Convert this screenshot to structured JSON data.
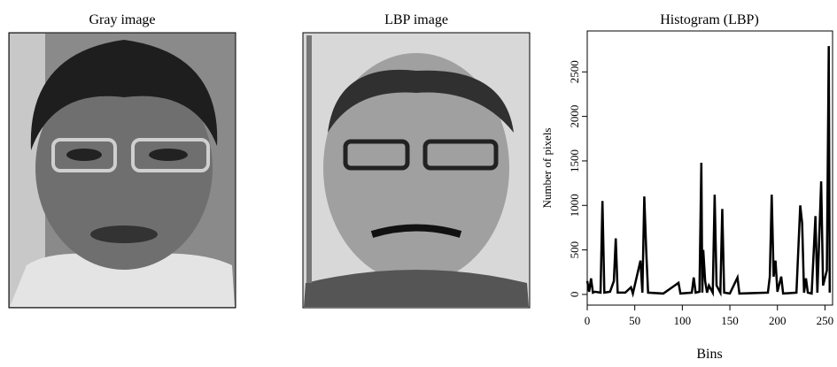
{
  "images": [
    {
      "title": "Gray image"
    },
    {
      "title": "LBP image"
    }
  ],
  "chart_data": {
    "type": "line",
    "title": "Histogram (LBP)",
    "x_label": "Bins",
    "y_label": "Number of pixels",
    "color": "#000000",
    "x": [
      0,
      2,
      4,
      6,
      8,
      14,
      16,
      18,
      24,
      28,
      30,
      32,
      40,
      46,
      48,
      56,
      58,
      60,
      62,
      64,
      80,
      96,
      98,
      110,
      112,
      114,
      118,
      120,
      121,
      122,
      124,
      126,
      128,
      132,
      134,
      136,
      140,
      142,
      144,
      150,
      158,
      160,
      190,
      192,
      194,
      196,
      198,
      200,
      204,
      206,
      220,
      224,
      226,
      228,
      230,
      232,
      236,
      240,
      242,
      246,
      248,
      252,
      254,
      255
    ],
    "values": [
      150,
      30,
      180,
      20,
      30,
      20,
      1050,
      20,
      30,
      150,
      630,
      20,
      20,
      80,
      10,
      380,
      20,
      1100,
      500,
      20,
      10,
      130,
      10,
      20,
      190,
      20,
      30,
      1480,
      20,
      500,
      150,
      20,
      100,
      20,
      1120,
      100,
      20,
      960,
      20,
      10,
      190,
      10,
      20,
      200,
      1120,
      200,
      380,
      30,
      200,
      10,
      20,
      1000,
      800,
      20,
      180,
      20,
      10,
      880,
      20,
      1270,
      100,
      270,
      2790,
      20
    ],
    "xlim": [
      0,
      258
    ],
    "xticks": [
      0,
      50,
      100,
      150,
      200,
      250
    ],
    "ylim": [
      -120,
      2960
    ],
    "yticks": [
      0,
      500,
      1000,
      1500,
      2000,
      2500
    ]
  }
}
